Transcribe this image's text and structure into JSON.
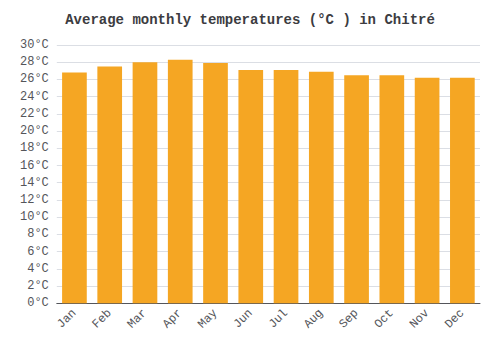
{
  "chart_data": {
    "type": "bar",
    "title": "Average monthly temperatures (°C ) in Chitré",
    "categories": [
      "Jan",
      "Feb",
      "Mar",
      "Apr",
      "May",
      "Jun",
      "Jul",
      "Aug",
      "Sep",
      "Oct",
      "Nov",
      "Dec"
    ],
    "values": [
      26.8,
      27.5,
      28.0,
      28.3,
      27.9,
      27.1,
      27.1,
      26.9,
      26.5,
      26.5,
      26.2,
      26.2
    ],
    "color": "#F5A623",
    "ylim": [
      0,
      30
    ],
    "yticks": [
      {
        "value": 0,
        "label": "0°C"
      },
      {
        "value": 2,
        "label": "2°C"
      },
      {
        "value": 4,
        "label": "4°C"
      },
      {
        "value": 6,
        "label": "6°C"
      },
      {
        "value": 8,
        "label": "8°C"
      },
      {
        "value": 10,
        "label": "10°C"
      },
      {
        "value": 12,
        "label": "12°C"
      },
      {
        "value": 14,
        "label": "14°C"
      },
      {
        "value": 16,
        "label": "16°C"
      },
      {
        "value": 18,
        "label": "18°C"
      },
      {
        "value": 20,
        "label": "20°C"
      },
      {
        "value": 22,
        "label": "22°C"
      },
      {
        "value": 24,
        "label": "24°C"
      },
      {
        "value": 26,
        "label": "26°C"
      },
      {
        "value": 28,
        "label": "28°C"
      },
      {
        "value": 30,
        "label": "30°C"
      }
    ],
    "grid": true
  }
}
